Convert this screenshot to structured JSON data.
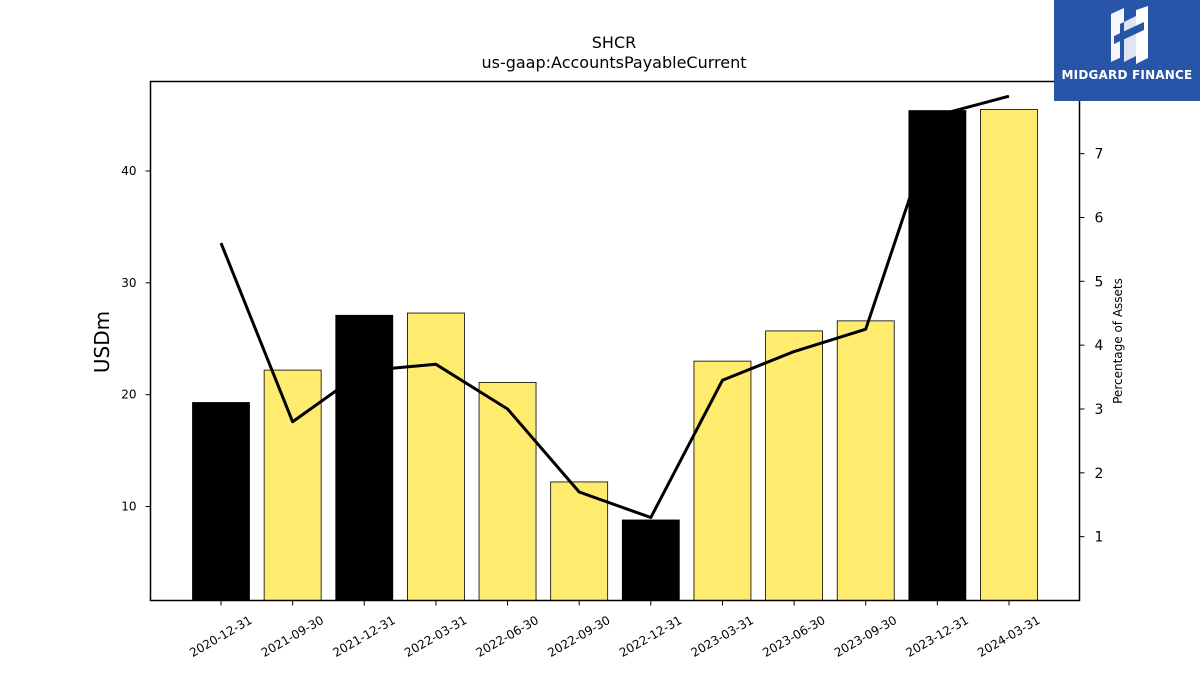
{
  "logo": {
    "text": "MIDGARD FINANCE"
  },
  "colors": {
    "annual_bar": "#000000",
    "quarterly_bar": "#ffeb6e",
    "line": "#000000",
    "logo_bg": "#2855a8"
  },
  "chart_data": {
    "type": "bar",
    "title": "SHCR",
    "subtitle": "us-gaap:AccountsPayableCurrent",
    "ylabel": "USDm",
    "ylabel_right": "Percentage of Assets",
    "categories": [
      "2020-12-31",
      "2021-09-30",
      "2021-12-31",
      "2022-03-31",
      "2022-06-30",
      "2022-09-30",
      "2022-12-31",
      "2023-03-31",
      "2023-06-30",
      "2023-09-30",
      "2023-12-31",
      "2024-03-31"
    ],
    "series": [
      {
        "values": [
          19.3,
          22.2,
          27.1,
          27.3,
          21.1,
          12.2,
          8.8,
          23.0,
          25.7,
          26.6,
          45.4,
          45.5
        ],
        "period": [
          "annual",
          "quarterly",
          "annual",
          "quarterly",
          "quarterly",
          "quarterly",
          "annual",
          "quarterly",
          "quarterly",
          "quarterly",
          "annual",
          "quarterly"
        ]
      },
      {
        "axis": "right",
        "type": "line",
        "values": [
          5.6,
          2.8,
          3.6,
          3.7,
          3.0,
          1.7,
          1.3,
          3.45,
          3.9,
          4.25,
          7.6,
          7.9
        ]
      }
    ],
    "ylim": [
      1.6,
      48.0
    ],
    "y_ticks": [
      10,
      20,
      30,
      40
    ],
    "ylim_right": [
      0.0,
      8.13
    ],
    "y_ticks_right": [
      1,
      2,
      3,
      4,
      5,
      6,
      7
    ],
    "grid": false
  }
}
